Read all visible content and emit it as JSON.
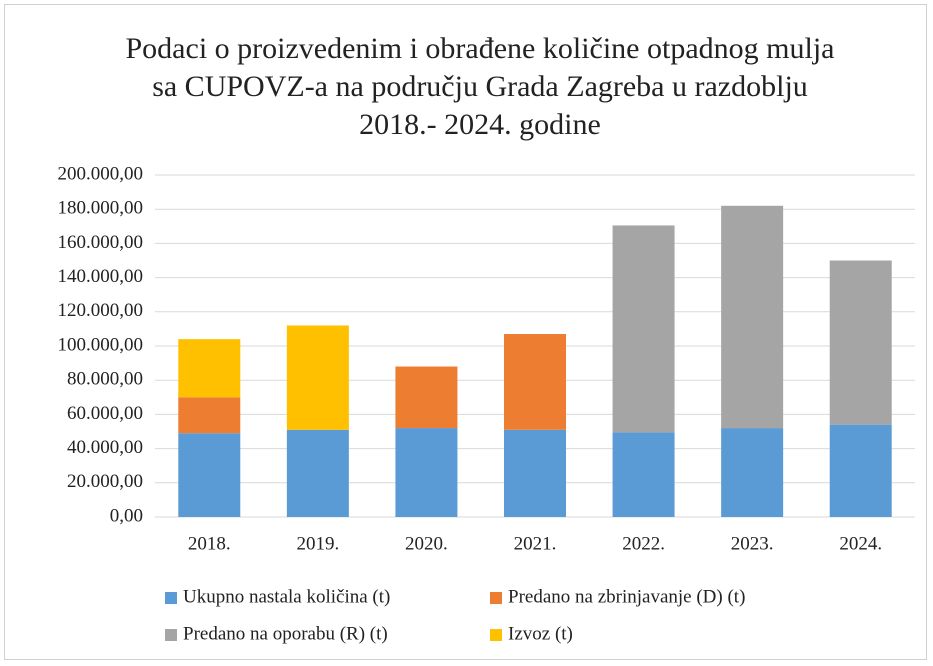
{
  "chart_data": {
    "type": "stacked_bar",
    "title": "Podaci o proizvedenim i obrađene količine otpadnog mulja sa CUPOVZ-a na području Grada Zagreba u razdoblju 2018.- 2024. godine",
    "categories": [
      "2018.",
      "2019.",
      "2020.",
      "2021.",
      "2022.",
      "2023.",
      "2024."
    ],
    "series": [
      {
        "name": "Ukupno nastala količina (t)",
        "color": "#5b9bd5",
        "values": [
          49000,
          51000,
          52000,
          51000,
          49500,
          52000,
          54000
        ]
      },
      {
        "name": "Predano na zbrinjavanje (D) (t)",
        "color": "#ed7d31",
        "values": [
          21000,
          0,
          36000,
          56000,
          0,
          0,
          0
        ]
      },
      {
        "name": "Predano na oporabu (R) (t)",
        "color": "#a5a5a5",
        "values": [
          0,
          0,
          0,
          0,
          121000,
          130000,
          96000
        ]
      },
      {
        "name": "Izvoz (t)",
        "color": "#ffc000",
        "values": [
          34000,
          61000,
          0,
          0,
          0,
          0,
          0
        ]
      }
    ],
    "ylim": [
      0,
      200000
    ],
    "yticks": [
      {
        "value": 0,
        "label": "0,00"
      },
      {
        "value": 20000,
        "label": "20.000,00"
      },
      {
        "value": 40000,
        "label": "40.000,00"
      },
      {
        "value": 60000,
        "label": "60.000,00"
      },
      {
        "value": 80000,
        "label": "80.000,00"
      },
      {
        "value": 100000,
        "label": "100.000,00"
      },
      {
        "value": 120000,
        "label": "120.000,00"
      },
      {
        "value": 140000,
        "label": "140.000,00"
      },
      {
        "value": 160000,
        "label": "160.000,00"
      },
      {
        "value": 180000,
        "label": "180.000,00"
      },
      {
        "value": 200000,
        "label": "200.000,00"
      }
    ],
    "grid": true
  }
}
